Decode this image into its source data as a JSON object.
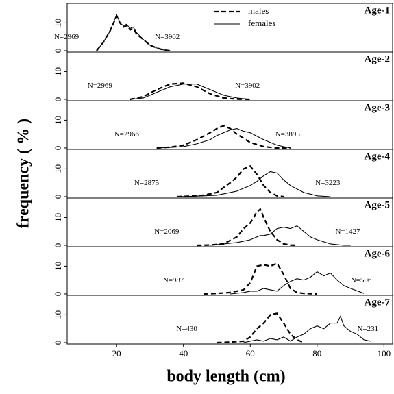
{
  "chart_data": {
    "type": "line",
    "xlabel": "body length (cm)",
    "ylabel": "frequency ( % )",
    "xlim": [
      5.2,
      102.6
    ],
    "xticks": [
      20,
      40,
      60,
      80,
      100
    ],
    "ylim": [
      -0.5,
      17
    ],
    "yticks": [
      0,
      10
    ],
    "legend": [
      {
        "name": "males",
        "line_style": "dashed"
      },
      {
        "name": "females",
        "line_style": "solid"
      }
    ],
    "color": "#000000",
    "panels": [
      {
        "title": "Age-1",
        "x": [
          14,
          16,
          18,
          20,
          21,
          22,
          23,
          24,
          25,
          26,
          28,
          30,
          32,
          34,
          36
        ],
        "series": [
          {
            "line_style": "dashed",
            "n_label": "N=2969",
            "values": [
              0,
              3,
              7,
              12.5,
              10,
              8.5,
              9,
              7.5,
              8,
              6,
              4,
              2,
              1,
              0.3,
              0
            ]
          },
          {
            "line_style": "solid",
            "n_label": "N=3902",
            "values": [
              0,
              3,
              7,
              13,
              10,
              9,
              9.5,
              8,
              8.5,
              6.5,
              4,
              2,
              1,
              0.3,
              0
            ]
          }
        ]
      },
      {
        "title": "Age-2",
        "x": [
          24,
          28,
          32,
          36,
          40,
          44,
          48,
          52,
          56,
          60
        ],
        "series": [
          {
            "line_style": "dashed",
            "n_label": "N=2969",
            "values": [
              0,
              1,
              3.5,
              5.5,
              5.8,
              4.5,
              2,
              0.5,
              0.1,
              0
            ]
          },
          {
            "line_style": "solid",
            "n_label": "N=3902",
            "values": [
              0,
              0.5,
              2.5,
              4.5,
              5.5,
              5.5,
              3.5,
              1.5,
              0.5,
              0
            ]
          }
        ]
      },
      {
        "title": "Age-3",
        "x": [
          32,
          36,
          40,
          44,
          48,
          50,
          52,
          54,
          56,
          58,
          60,
          64,
          68,
          72
        ],
        "series": [
          {
            "line_style": "dashed",
            "n_label": "N=2966",
            "values": [
              0,
              0.3,
              1,
              3,
              5.5,
              7,
              8,
              7,
              5,
              3.5,
              2,
              0.5,
              0,
              0
            ]
          },
          {
            "line_style": "solid",
            "n_label": "N=3895",
            "values": [
              0,
              0.2,
              0.5,
              1.5,
              3,
              4.5,
              5.5,
              6.5,
              7,
              6,
              5.5,
              3,
              1,
              0
            ]
          }
        ]
      },
      {
        "title": "Age-4",
        "x": [
          38,
          42,
          46,
          50,
          54,
          56,
          58,
          60,
          62,
          64,
          66,
          68,
          70,
          72,
          76,
          80,
          84
        ],
        "series": [
          {
            "line_style": "dashed",
            "n_label": "N=2875",
            "values": [
              0,
              0.2,
              0.5,
              1.5,
              5,
              7,
              10,
              11,
              8,
              4,
              1.5,
              0.3,
              0,
              null,
              null,
              null,
              null
            ]
          },
          {
            "line_style": "solid",
            "n_label": "N=3223",
            "values": [
              0,
              0.1,
              0.3,
              0.5,
              1.5,
              2,
              3,
              4,
              5.5,
              7.5,
              9,
              8.5,
              6,
              4,
              1.5,
              0.3,
              0
            ]
          }
        ]
      },
      {
        "title": "Age-5",
        "x": [
          44,
          48,
          52,
          56,
          58,
          60,
          62,
          63,
          64,
          66,
          68,
          70,
          72,
          74,
          76,
          78,
          80,
          84,
          88,
          90
        ],
        "series": [
          {
            "line_style": "dashed",
            "n_label": "N=2069",
            "values": [
              0,
              0.1,
              0.5,
              3,
              6,
              8,
              12,
              13,
              10,
              5,
              2,
              0.5,
              0.1,
              0,
              null,
              null,
              null,
              null,
              null,
              null
            ]
          },
          {
            "line_style": "solid",
            "n_label": "N=1427",
            "values": [
              null,
              0,
              0.5,
              1,
              1.5,
              2,
              3,
              3.5,
              3.5,
              4,
              6,
              6.5,
              6,
              7,
              5,
              3,
              2,
              0.5,
              0,
              0
            ]
          }
        ]
      },
      {
        "title": "Age-6",
        "x": [
          46,
          50,
          54,
          58,
          60,
          62,
          64,
          66,
          68,
          70,
          72,
          74,
          76,
          78,
          80,
          82,
          84,
          86,
          88,
          90,
          94
        ],
        "series": [
          {
            "line_style": "dashed",
            "n_label": "N=987",
            "values": [
              0,
              0.2,
              0.5,
              1.5,
              4,
              10,
              10.5,
              10,
              11,
              7,
              2,
              0.5,
              0.2,
              0.1,
              0,
              null,
              null,
              null,
              null,
              null,
              null
            ]
          },
          {
            "line_style": "solid",
            "n_label": "N=506",
            "values": [
              null,
              null,
              0,
              0.5,
              1,
              1,
              2,
              1.5,
              1,
              3,
              4.5,
              5.5,
              5,
              6,
              8,
              6.5,
              7.5,
              5,
              3,
              2,
              0.2
            ]
          }
        ]
      },
      {
        "title": "Age-7",
        "x": [
          50,
          54,
          58,
          60,
          62,
          64,
          66,
          68,
          70,
          72,
          74,
          76,
          78,
          80,
          82,
          84,
          86,
          87,
          88,
          90,
          92,
          94,
          96
        ],
        "series": [
          {
            "line_style": "dashed",
            "n_label": "N=430",
            "values": [
              0,
              0.2,
              0.5,
              2,
              5,
              7,
              10,
              10.5,
              7,
              3,
              1,
              0,
              null,
              null,
              null,
              null,
              null,
              null,
              null,
              null,
              null,
              null,
              null
            ]
          },
          {
            "line_style": "solid",
            "n_label": "N=231",
            "values": [
              null,
              null,
              0,
              0.5,
              1,
              0.5,
              1.5,
              1,
              2,
              0.5,
              2,
              3,
              5,
              6,
              5,
              7,
              7,
              9.5,
              6,
              4,
              3,
              1,
              0.5
            ]
          }
        ]
      }
    ]
  }
}
